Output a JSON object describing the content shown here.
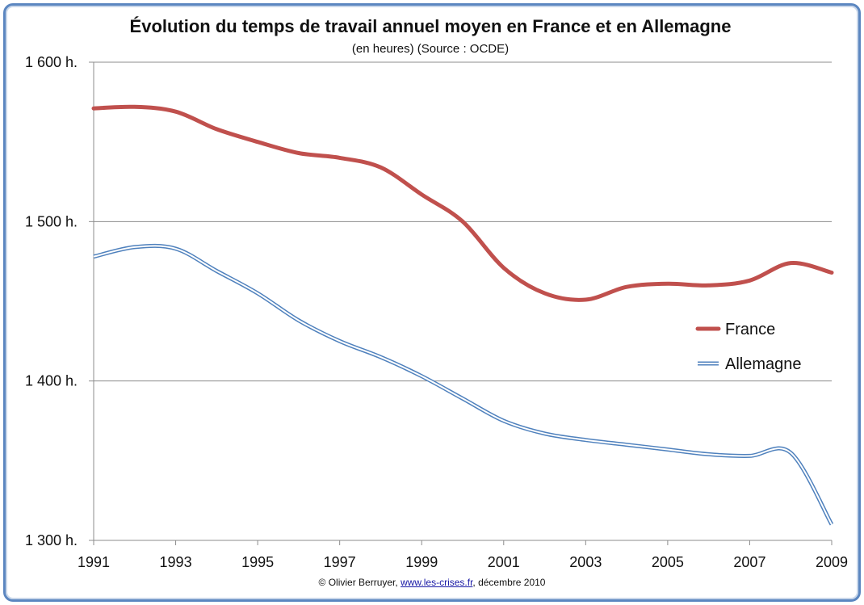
{
  "chart_data": {
    "type": "line",
    "title": "Évolution du temps de travail annuel moyen en France et en Allemagne",
    "subtitle": "(en heures) (Source : OCDE)",
    "xlabel": "",
    "ylabel": "",
    "x": [
      1991,
      1992,
      1993,
      1994,
      1995,
      1996,
      1997,
      1998,
      1999,
      2000,
      2001,
      2002,
      2003,
      2004,
      2005,
      2006,
      2007,
      2008,
      2009
    ],
    "x_ticks": [
      "1991",
      "1993",
      "1995",
      "1997",
      "1999",
      "2001",
      "2003",
      "2005",
      "2007",
      "2009"
    ],
    "y_ticks": [
      "1 300 h.",
      "1 400 h.",
      "1 500 h.",
      "1 600 h."
    ],
    "y_tick_values": [
      1300,
      1400,
      1500,
      1600
    ],
    "xlim": [
      1991,
      2009
    ],
    "ylim": [
      1300,
      1600
    ],
    "grid": true,
    "legend_position": "right",
    "series": [
      {
        "name": "France",
        "color": "#c0504d",
        "values": [
          1571,
          1572,
          1569,
          1558,
          1550,
          1543,
          1540,
          1534,
          1517,
          1500,
          1471,
          1455,
          1451,
          1459,
          1461,
          1460,
          1463,
          1474,
          1468
        ]
      },
      {
        "name": "Allemagne",
        "color": "#4f81bd",
        "values": [
          1478,
          1484,
          1483,
          1469,
          1455,
          1438,
          1425,
          1415,
          1403,
          1389,
          1375,
          1367,
          1363,
          1360,
          1357,
          1354,
          1353,
          1355,
          1310
        ]
      }
    ]
  },
  "credit": {
    "prefix": "© Olivier Berruyer, ",
    "link": "www.les-crises.fr",
    "suffix": ", décembre 2010"
  }
}
